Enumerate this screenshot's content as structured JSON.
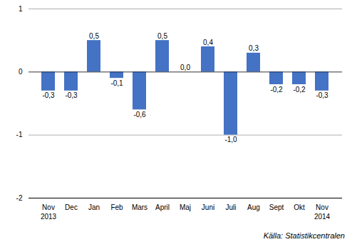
{
  "chart_data": {
    "type": "bar",
    "categories": [
      "Nov",
      "Dec",
      "Jan",
      "Feb",
      "Mars",
      "April",
      "Maj",
      "Juni",
      "Juli",
      "Aug",
      "Sept",
      "Okt",
      "Nov"
    ],
    "values": [
      -0.3,
      -0.3,
      0.5,
      -0.1,
      -0.6,
      0.5,
      0.0,
      0.4,
      -1.0,
      0.3,
      -0.2,
      -0.2,
      -0.3
    ],
    "value_labels": [
      "-0,3",
      "-0,3",
      "0,5",
      "-0,1",
      "-0,6",
      "0,5",
      "0,0",
      "0,4",
      "-1,0",
      "0,3",
      "-0,2",
      "-0,2",
      "-0,3"
    ],
    "color": "#4472C4",
    "ylim": [
      -2,
      1
    ],
    "yticks": [
      -2,
      -1,
      0,
      1
    ],
    "grid": true,
    "data_labels": true,
    "annotations": [
      {
        "text": "2013",
        "x": 0
      },
      {
        "text": "2014",
        "x": 12
      }
    ],
    "source": "Källa: Statistikcentralen"
  }
}
